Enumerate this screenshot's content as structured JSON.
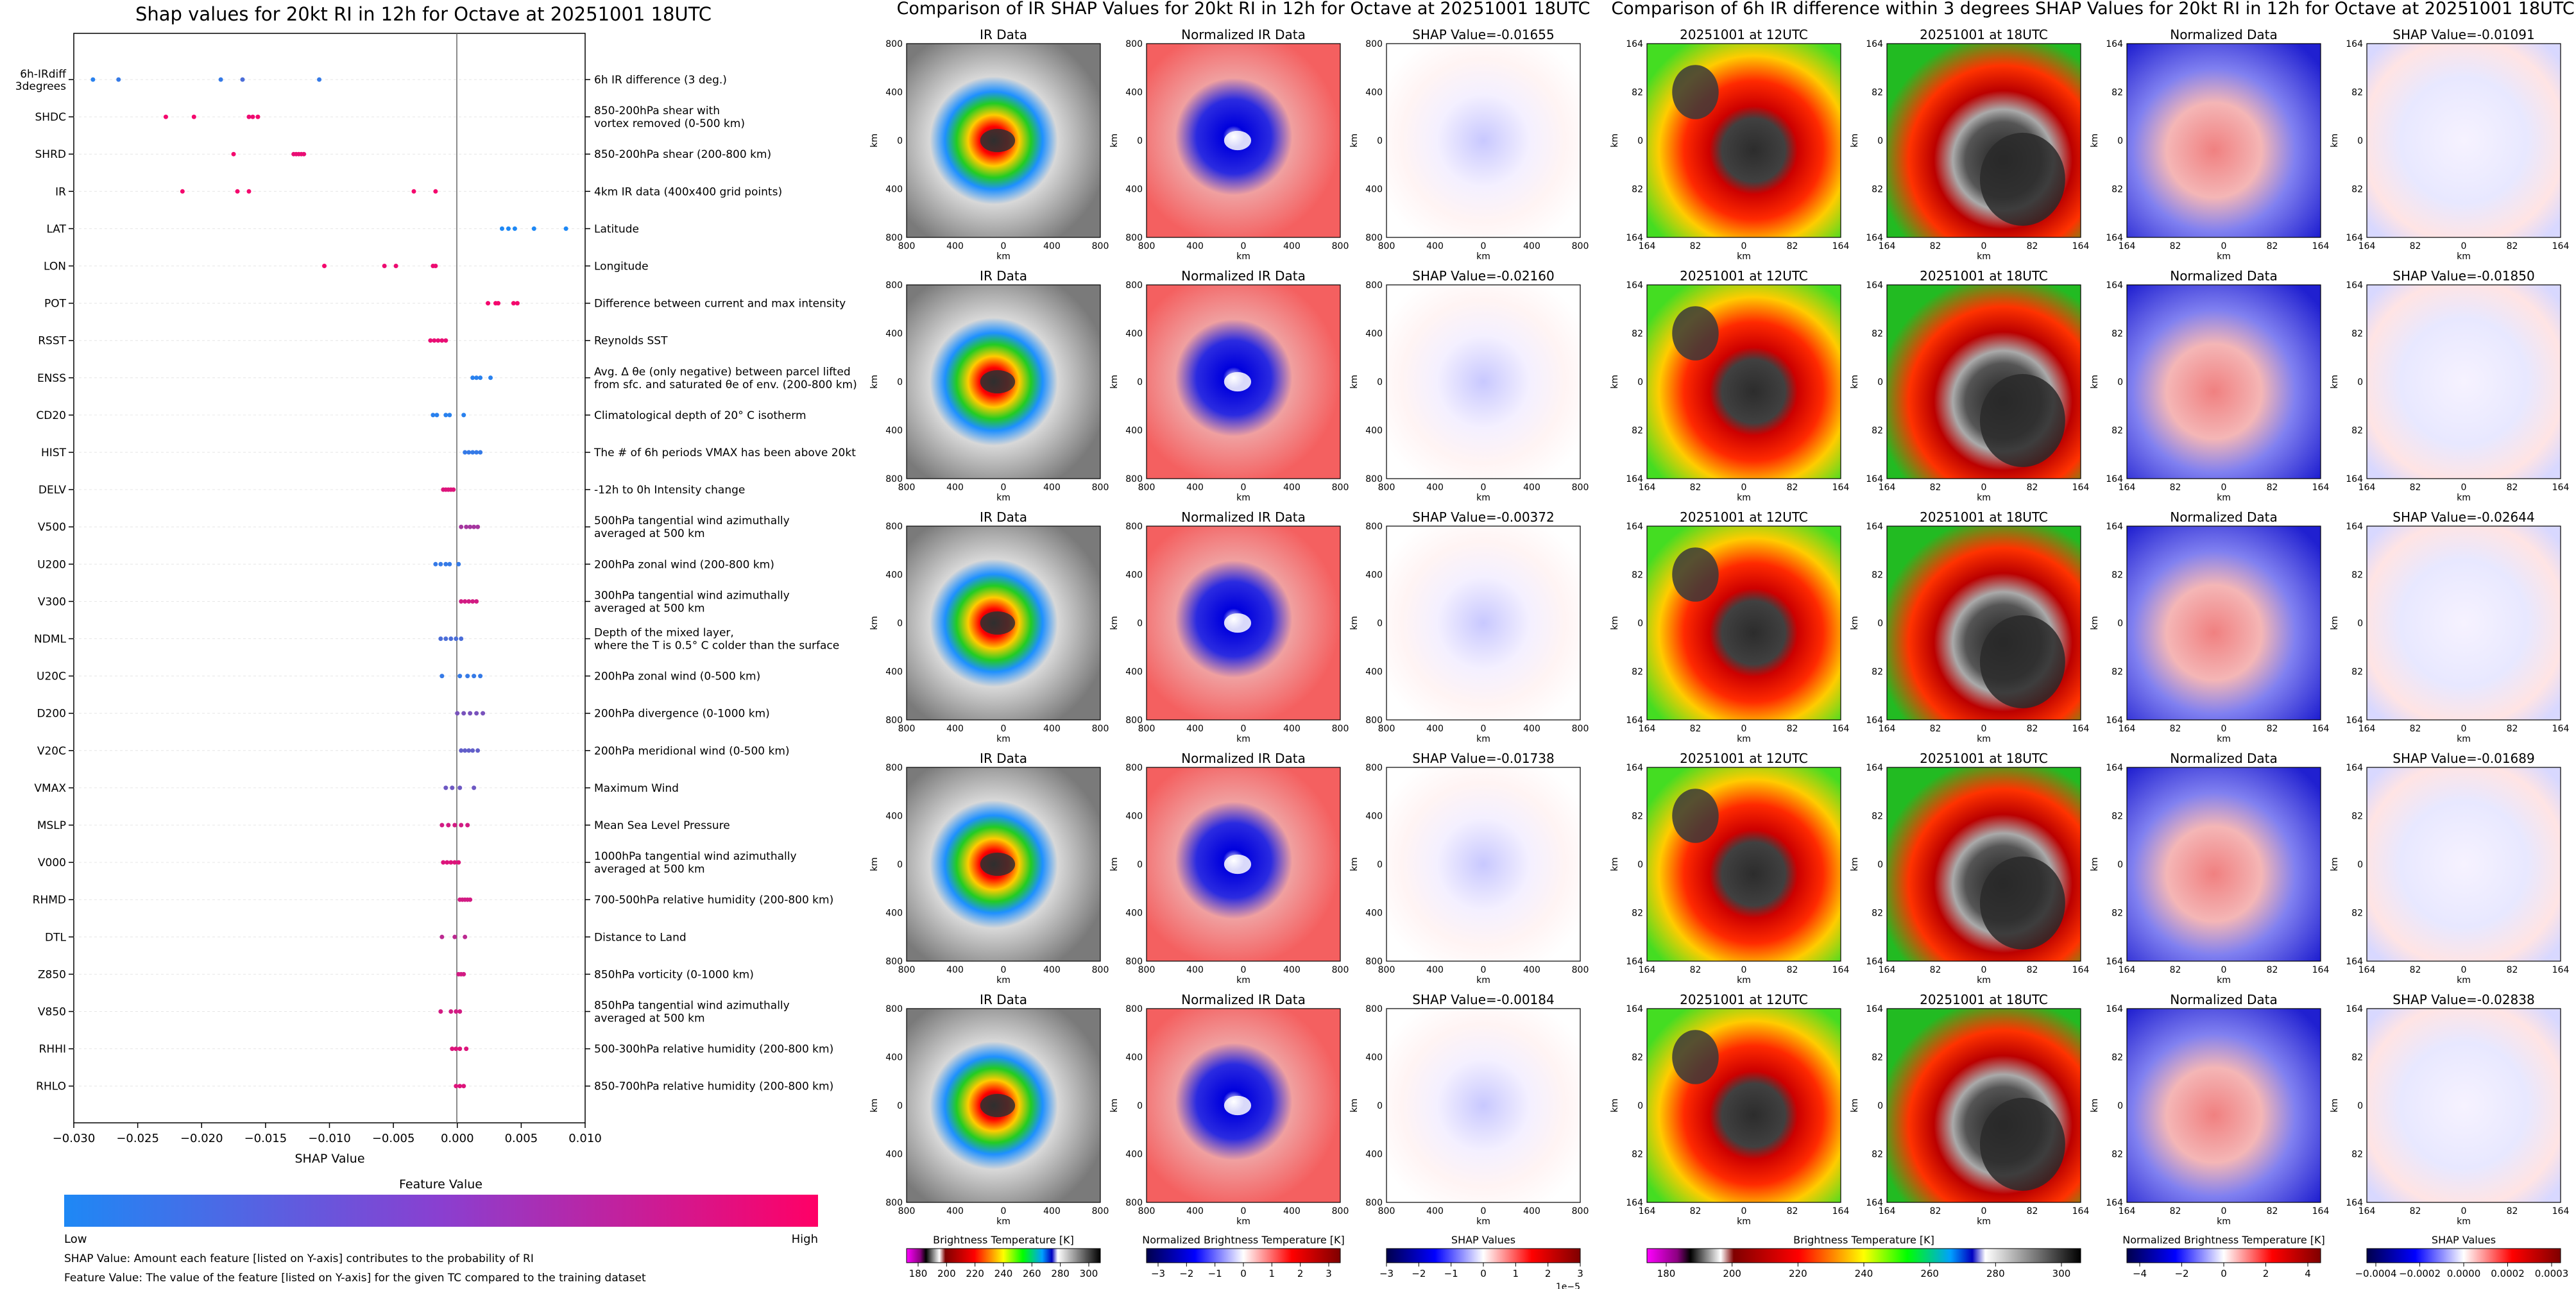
{
  "colors": {
    "shap_low": "#1e88f5",
    "shap_high": "#ff0066",
    "text": "#111111"
  },
  "left_panel": {
    "title": "Shap values for 20kt RI in 12h for Octave at 20251001 18UTC",
    "xlabel": "SHAP Value",
    "xticks": [
      "−0.030",
      "−0.025",
      "−0.020",
      "−0.015",
      "−0.010",
      "−0.005",
      "0.000",
      "0.005",
      "0.010"
    ],
    "colorbar_title": "Feature Value",
    "colorbar_low": "Low",
    "colorbar_high": "High",
    "note1": "SHAP Value: Amount each feature [listed on Y-axis] contributes to the probability of RI",
    "note2": "Feature Value: The value of the feature [listed on Y-axis] for the given TC compared to the training dataset"
  },
  "chart_data": [
    {
      "type": "scatter",
      "title": "Shap values for 20kt RI in 12h for Octave at 20251001 18UTC",
      "xlabel": "SHAP Value",
      "xlim": [
        -0.03,
        0.01
      ],
      "features": [
        {
          "code": "6h-IRdiff 3degrees",
          "desc": "6h IR difference (3 deg.)",
          "points": [
            [
              -0.0285,
              0.05
            ],
            [
              -0.0265,
              0.1
            ],
            [
              -0.0185,
              0.1
            ],
            [
              -0.0168,
              0.2
            ],
            [
              -0.0108,
              0.1
            ]
          ]
        },
        {
          "code": "SHDC",
          "desc": "850-200hPa shear with vortex removed (0-500 km)",
          "points": [
            [
              -0.0228,
              0.95
            ],
            [
              -0.0206,
              0.95
            ],
            [
              -0.0163,
              0.92
            ],
            [
              -0.016,
              0.92
            ],
            [
              -0.0156,
              0.95
            ]
          ]
        },
        {
          "code": "SHRD",
          "desc": "850-200hPa shear (200-800 km)",
          "points": [
            [
              -0.0175,
              0.95
            ],
            [
              -0.0128,
              0.9
            ],
            [
              -0.0126,
              0.9
            ],
            [
              -0.0124,
              0.9
            ],
            [
              -0.0122,
              0.9
            ],
            [
              -0.012,
              0.9
            ]
          ]
        },
        {
          "code": "IR",
          "desc": "4km IR data (400x400 grid points)",
          "points": [
            [
              -0.0215,
              0.95
            ],
            [
              -0.0172,
              0.95
            ],
            [
              -0.0163,
              0.95
            ],
            [
              -0.0034,
              0.95
            ],
            [
              -0.0017,
              0.95
            ]
          ]
        },
        {
          "code": "LAT",
          "desc": "Latitude",
          "points": [
            [
              0.0035,
              0.0
            ],
            [
              0.004,
              0.0
            ],
            [
              0.0045,
              0.0
            ],
            [
              0.006,
              0.0
            ],
            [
              0.0085,
              0.0
            ]
          ]
        },
        {
          "code": "LON",
          "desc": "Longitude",
          "points": [
            [
              -0.0104,
              0.95
            ],
            [
              -0.0057,
              0.92
            ],
            [
              -0.0048,
              0.92
            ],
            [
              -0.0019,
              0.92
            ],
            [
              -0.0017,
              0.92
            ]
          ]
        },
        {
          "code": "POT",
          "desc": "Difference between current and max intensity",
          "points": [
            [
              0.0024,
              0.95
            ],
            [
              0.003,
              0.95
            ],
            [
              0.0032,
              0.95
            ],
            [
              0.0044,
              0.95
            ],
            [
              0.0047,
              0.95
            ]
          ]
        },
        {
          "code": "RSST",
          "desc": "Reynolds SST",
          "points": [
            [
              -0.0021,
              0.9
            ],
            [
              -0.0018,
              0.9
            ],
            [
              -0.0015,
              0.9
            ],
            [
              -0.0012,
              0.9
            ],
            [
              -0.0009,
              0.9
            ]
          ]
        },
        {
          "code": "ENSS",
          "desc": "Avg. Δ θe (only negative) between parcel lifted from sfc. and saturated θe of env. (200-800 km)",
          "points": [
            [
              0.0012,
              0.05
            ],
            [
              0.0015,
              0.05
            ],
            [
              0.0018,
              0.05
            ],
            [
              0.0026,
              0.05
            ]
          ]
        },
        {
          "code": "CD20",
          "desc": "Climatological depth of 20° C isotherm",
          "points": [
            [
              -0.0019,
              0.05
            ],
            [
              -0.0016,
              0.05
            ],
            [
              -0.0009,
              0.05
            ],
            [
              -0.0006,
              0.05
            ],
            [
              0.0005,
              0.05
            ]
          ]
        },
        {
          "code": "HIST",
          "desc": "The # of 6h periods VMAX has been above 20kt",
          "points": [
            [
              0.0006,
              0.1
            ],
            [
              0.0009,
              0.1
            ],
            [
              0.0012,
              0.1
            ],
            [
              0.0015,
              0.1
            ],
            [
              0.0018,
              0.1
            ]
          ]
        },
        {
          "code": "DELV",
          "desc": "-12h to 0h Intensity change",
          "points": [
            [
              -0.0011,
              0.85
            ],
            [
              -0.0009,
              0.85
            ],
            [
              -0.0007,
              0.85
            ],
            [
              -0.0005,
              0.85
            ],
            [
              -0.0003,
              0.85
            ]
          ]
        },
        {
          "code": "V500",
          "desc": "500hPa tangential wind azimuthally averaged at 500 km",
          "points": [
            [
              0.0003,
              0.6
            ],
            [
              0.0007,
              0.6
            ],
            [
              0.001,
              0.6
            ],
            [
              0.0013,
              0.6
            ],
            [
              0.0016,
              0.6
            ]
          ]
        },
        {
          "code": "U200",
          "desc": "200hPa zonal wind (200-800 km)",
          "points": [
            [
              -0.0017,
              0.1
            ],
            [
              -0.0013,
              0.1
            ],
            [
              -0.0009,
              0.1
            ],
            [
              -0.0006,
              0.1
            ],
            [
              0.0001,
              0.1
            ]
          ]
        },
        {
          "code": "V300",
          "desc": "300hPa tangential wind azimuthally averaged at 500 km",
          "points": [
            [
              0.0003,
              0.8
            ],
            [
              0.0006,
              0.8
            ],
            [
              0.0009,
              0.8
            ],
            [
              0.0012,
              0.8
            ],
            [
              0.0015,
              0.8
            ]
          ]
        },
        {
          "code": "NDML",
          "desc": "Depth of the mixed layer, where the T is 0.5° C colder than the surface",
          "points": [
            [
              -0.0013,
              0.2
            ],
            [
              -0.0009,
              0.2
            ],
            [
              -0.0005,
              0.2
            ],
            [
              -0.0001,
              0.2
            ],
            [
              0.0003,
              0.2
            ]
          ]
        },
        {
          "code": "U20C",
          "desc": "200hPa zonal wind (0-500 km)",
          "points": [
            [
              -0.0012,
              0.1
            ],
            [
              0.0002,
              0.1
            ],
            [
              0.0008,
              0.1
            ],
            [
              0.0013,
              0.1
            ],
            [
              0.0018,
              0.1
            ]
          ]
        },
        {
          "code": "D200",
          "desc": "200hPa divergence (0-1000 km)",
          "points": [
            [
              0.0,
              0.4
            ],
            [
              0.0005,
              0.4
            ],
            [
              0.001,
              0.4
            ],
            [
              0.0015,
              0.4
            ],
            [
              0.002,
              0.4
            ]
          ]
        },
        {
          "code": "V20C",
          "desc": "200hPa meridional wind (0-500 km)",
          "points": [
            [
              0.0003,
              0.3
            ],
            [
              0.0006,
              0.3
            ],
            [
              0.0009,
              0.3
            ],
            [
              0.0012,
              0.3
            ],
            [
              0.0016,
              0.3
            ]
          ]
        },
        {
          "code": "VMAX",
          "desc": "Maximum Wind",
          "points": [
            [
              -0.0009,
              0.35
            ],
            [
              -0.0004,
              0.35
            ],
            [
              0.0002,
              0.35
            ],
            [
              0.0013,
              0.35
            ]
          ]
        },
        {
          "code": "MSLP",
          "desc": "Mean Sea Level Pressure",
          "points": [
            [
              -0.0012,
              0.8
            ],
            [
              -0.0007,
              0.8
            ],
            [
              -0.0002,
              0.8
            ],
            [
              0.0003,
              0.8
            ],
            [
              0.0008,
              0.8
            ]
          ]
        },
        {
          "code": "V000",
          "desc": "1000hPa tangential wind azimuthally averaged at 500 km",
          "points": [
            [
              -0.0011,
              0.85
            ],
            [
              -0.0008,
              0.85
            ],
            [
              -0.0005,
              0.85
            ],
            [
              -0.0002,
              0.85
            ],
            [
              0.0001,
              0.85
            ]
          ]
        },
        {
          "code": "RHMD",
          "desc": "700-500hPa relative humidity (200-800 km)",
          "points": [
            [
              0.0002,
              0.8
            ],
            [
              0.0004,
              0.8
            ],
            [
              0.0006,
              0.8
            ],
            [
              0.0008,
              0.8
            ],
            [
              0.001,
              0.8
            ]
          ]
        },
        {
          "code": "DTL",
          "desc": "Distance to Land",
          "points": [
            [
              -0.0012,
              0.7
            ],
            [
              -0.0002,
              0.7
            ],
            [
              0.0006,
              0.7
            ]
          ]
        },
        {
          "code": "Z850",
          "desc": "850hPa vorticity (0-1000 km)",
          "points": [
            [
              0.0001,
              0.8
            ],
            [
              0.0003,
              0.8
            ],
            [
              0.0005,
              0.8
            ]
          ]
        },
        {
          "code": "V850",
          "desc": "850hPa tangential wind azimuthally averaged at 500 km",
          "points": [
            [
              -0.0013,
              0.8
            ],
            [
              -0.0005,
              0.8
            ],
            [
              -0.0001,
              0.8
            ],
            [
              0.0002,
              0.8
            ]
          ]
        },
        {
          "code": "RHHI",
          "desc": "500-300hPa relative humidity (200-800 km)",
          "points": [
            [
              -0.0004,
              0.85
            ],
            [
              -0.0001,
              0.85
            ],
            [
              0.0002,
              0.85
            ],
            [
              0.0007,
              0.85
            ]
          ]
        },
        {
          "code": "RHLO",
          "desc": "850-700hPa relative humidity (200-800 km)",
          "points": [
            [
              -0.0001,
              0.85
            ],
            [
              0.0002,
              0.85
            ],
            [
              0.0005,
              0.85
            ]
          ]
        }
      ]
    },
    {
      "type": "heatmap",
      "title": "Comparison of IR SHAP Values for 20kt RI in 12h for Octave at 20251001 18UTC",
      "columns": [
        "IR Data",
        "Normalized IR Data",
        "SHAP Value"
      ],
      "shap_values": [
        "-0.01655",
        "-0.02160",
        "-0.00372",
        "-0.01738",
        "-0.00184"
      ],
      "axis_unit": "km",
      "ticks": [
        "800",
        "400",
        "0",
        "400",
        "800"
      ],
      "colorbars": [
        {
          "label": "Brightness Temperature [K]",
          "ticks": [
            "180",
            "200",
            "220",
            "240",
            "260",
            "280",
            "300"
          ]
        },
        {
          "label": "Normalized Brightness Temperature [K]",
          "ticks": [
            "−3",
            "−2",
            "−1",
            "0",
            "1",
            "2",
            "3"
          ]
        },
        {
          "label": "SHAP Values",
          "ticks": [
            "−3",
            "−2",
            "−1",
            "0",
            "1",
            "2",
            "3"
          ],
          "offset": "1e−5"
        }
      ]
    },
    {
      "type": "heatmap",
      "title": "Comparison of 6h IR difference within 3 degrees SHAP Values for 20kt RI in 12h for Octave at 20251001 18UTC",
      "columns": [
        "20251001 at 12UTC",
        "20251001 at 18UTC",
        "Normalized Data",
        "SHAP Value"
      ],
      "shap_values": [
        "-0.01091",
        "-0.01850",
        "-0.02644",
        "-0.01689",
        "-0.02838"
      ],
      "axis_unit": "km",
      "ticks": [
        "164",
        "82",
        "0",
        "82",
        "164"
      ],
      "colorbars": [
        {
          "label": "Brightness Temperature [K]",
          "ticks": [
            "180",
            "200",
            "220",
            "240",
            "260",
            "280",
            "300"
          ]
        },
        {
          "label": "Normalized Brightness Temperature [K]",
          "ticks": [
            "−4",
            "−2",
            "0",
            "2",
            "4"
          ]
        },
        {
          "label": "SHAP Values",
          "ticks": [
            "−0.0004",
            "−0.0002",
            "0.0000",
            "0.0002",
            "0.0003"
          ]
        }
      ]
    }
  ],
  "ir_panel": {
    "title": "Comparison of IR SHAP Values for 20kt RI in 12h for Octave at 20251001 18UTC"
  },
  "diff_panel": {
    "title": "Comparison of 6h IR difference within 3 degrees SHAP Values for 20kt RI in 12h for Octave at 20251001 18UTC"
  }
}
